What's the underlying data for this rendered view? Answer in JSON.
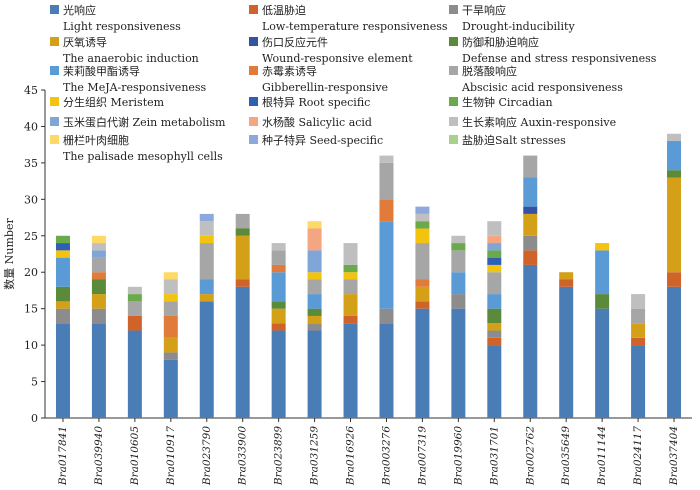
{
  "chart_data": {
    "type": "bar",
    "stacked": true,
    "title": "",
    "xlabel": "",
    "ylabel": "数量 Number",
    "ylim": [
      0,
      45
    ],
    "yticks": [
      0,
      5,
      10,
      15,
      20,
      25,
      30,
      35,
      40,
      45
    ],
    "grid": false,
    "legend_position": "top",
    "categories": [
      "Bra017841",
      "Bra039940",
      "Bra010605",
      "Bra010917",
      "Bra023790",
      "Bra033900",
      "Bra023899",
      "Bra031259",
      "Bra016926",
      "Bra003276",
      "Bra007319",
      "Bra019960",
      "Bra031701",
      "Bra002762",
      "Bra035649",
      "Bra011144",
      "Bra024117",
      "Bra037404"
    ],
    "series": [
      {
        "name": "光响应",
        "name_en": "Light responsiveness",
        "color": "#4a7db5",
        "values": [
          13,
          13,
          12,
          8,
          16,
          18,
          12,
          12,
          13,
          13,
          15,
          15,
          10,
          21,
          18,
          15,
          10,
          18
        ]
      },
      {
        "name": "低温胁迫",
        "name_en": "Low-temperature responsiveness",
        "color": "#d0632a",
        "values": [
          0,
          0,
          2,
          0,
          0,
          1,
          1,
          0,
          1,
          0,
          1,
          0,
          1,
          2,
          1,
          0,
          1,
          2
        ]
      },
      {
        "name": "干旱响应",
        "name_en": "Drought-inducibility",
        "color": "#8c8c8c",
        "values": [
          2,
          2,
          0,
          1,
          0,
          0,
          0,
          1,
          0,
          2,
          0,
          2,
          1,
          2,
          0,
          0,
          0,
          0
        ]
      },
      {
        "name": "厌氧诱导",
        "name_en": "The anaerobic induction",
        "color": "#d4a017",
        "values": [
          1,
          2,
          0,
          2,
          1,
          6,
          2,
          1,
          3,
          0,
          2,
          0,
          1,
          3,
          1,
          0,
          2,
          13
        ]
      },
      {
        "name": "伤口反应元件",
        "name_en": "Wound-responsive element",
        "color": "#3553a3",
        "values": [
          0,
          0,
          0,
          0,
          0,
          0,
          0,
          0,
          0,
          0,
          0,
          0,
          0,
          1,
          0,
          0,
          0,
          0
        ]
      },
      {
        "name": "防御和胁迫响应",
        "name_en": "Defense and stress responsiveness",
        "color": "#5a8a3a",
        "values": [
          2,
          2,
          0,
          0,
          0,
          1,
          1,
          1,
          0,
          0,
          0,
          0,
          2,
          0,
          0,
          2,
          0,
          1
        ]
      },
      {
        "name": "茉莉酸甲酯诱导",
        "name_en": "The MeJA-responsiveness",
        "color": "#5b9bd5",
        "values": [
          4,
          0,
          0,
          0,
          2,
          0,
          4,
          2,
          0,
          12,
          0,
          3,
          2,
          4,
          0,
          6,
          0,
          4
        ]
      },
      {
        "name": "赤霉素诱导",
        "name_en": "Gibberellin-responsive",
        "color": "#e07b39",
        "values": [
          0,
          1,
          0,
          3,
          0,
          0,
          1,
          0,
          0,
          3,
          1,
          0,
          0,
          0,
          0,
          0,
          0,
          0
        ]
      },
      {
        "name": "脱落酸响应",
        "name_en": "Abscisic acid responsiveness",
        "color": "#a6a6a6",
        "values": [
          0,
          2,
          2,
          2,
          5,
          2,
          2,
          2,
          2,
          5,
          5,
          3,
          3,
          3,
          0,
          0,
          2,
          0
        ]
      },
      {
        "name": "分生组织 Meristem",
        "color": "#f2c40f",
        "values": [
          1,
          0,
          0,
          1,
          1,
          0,
          0,
          1,
          1,
          0,
          2,
          0,
          1,
          0,
          0,
          1,
          0,
          0
        ]
      },
      {
        "name": "根特异 Root specific",
        "color": "#2f5fb3",
        "values": [
          1,
          0,
          0,
          0,
          0,
          0,
          0,
          0,
          0,
          0,
          0,
          0,
          1,
          0,
          0,
          0,
          0,
          0
        ]
      },
      {
        "name": "生物钟 Circadian",
        "color": "#6aaa4a",
        "values": [
          1,
          0,
          1,
          0,
          0,
          0,
          0,
          0,
          1,
          0,
          1,
          1,
          1,
          0,
          0,
          0,
          0,
          0
        ]
      },
      {
        "name": "玉米蛋白代谢 Zein metabolism",
        "color": "#7fa6d6",
        "values": [
          0,
          1,
          0,
          0,
          0,
          0,
          0,
          3,
          0,
          0,
          0,
          0,
          1,
          0,
          0,
          0,
          0,
          0
        ]
      },
      {
        "name": "水杨酸 Salicylic acid",
        "color": "#f4a582",
        "values": [
          0,
          0,
          0,
          0,
          0,
          0,
          0,
          3,
          0,
          0,
          0,
          0,
          1,
          0,
          0,
          0,
          0,
          0
        ]
      },
      {
        "name": "生长素响应 Auxin-responsive",
        "color": "#bfbfbf",
        "values": [
          0,
          1,
          1,
          2,
          2,
          0,
          1,
          0,
          3,
          1,
          1,
          1,
          2,
          0,
          0,
          0,
          2,
          1
        ]
      },
      {
        "name": "栅栏叶肉细胞",
        "name_en": "The palisade mesophyll cells",
        "color": "#ffd966",
        "values": [
          0,
          1,
          0,
          1,
          0,
          0,
          0,
          1,
          0,
          0,
          0,
          0,
          0,
          0,
          0,
          0,
          0,
          0
        ]
      },
      {
        "name": "种子特异 Seed-specific",
        "color": "#8fa8dc",
        "values": [
          0,
          0,
          0,
          0,
          1,
          0,
          0,
          0,
          0,
          0,
          1,
          0,
          0,
          0,
          0,
          0,
          0,
          0
        ]
      },
      {
        "name": "盐胁迫Salt stresses",
        "color": "#a9d18e",
        "values": [
          0,
          0,
          0,
          0,
          0,
          0,
          0,
          0,
          0,
          0,
          0,
          0,
          0,
          0,
          0,
          0,
          0,
          0
        ]
      }
    ]
  }
}
